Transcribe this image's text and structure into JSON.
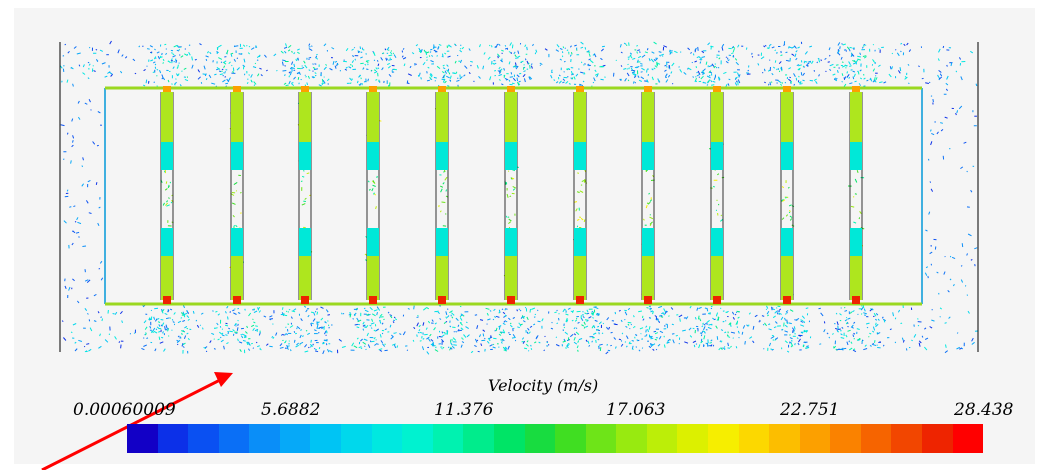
{
  "legend": {
    "title": "Velocity (m/s)",
    "ticks": [
      "0.00060009",
      "5.6882",
      "11.376",
      "17.063",
      "22.751",
      "28.438"
    ],
    "range": [
      0.00060009,
      28.438
    ],
    "colormap": [
      "#1200c6",
      "#0c30e8",
      "#0a50f2",
      "#0a6ff6",
      "#0a8ef8",
      "#06a9f8",
      "#00c4f4",
      "#00d8ec",
      "#00e8e0",
      "#00f2d0",
      "#00f2b0",
      "#00ec8c",
      "#00e466",
      "#18dc40",
      "#40de22",
      "#6ee418",
      "#98ea10",
      "#bcee08",
      "#dcf000",
      "#f6ee00",
      "#fcd800",
      "#fcbe00",
      "#fca000",
      "#fa8200",
      "#f66400",
      "#f24600",
      "#ee2400",
      "#ff0000"
    ]
  },
  "annotation": {
    "color": "#ff0000"
  },
  "geometry_colors": {
    "outline": "#000000",
    "blade_root": "#00e8d8",
    "blade_mid": "#aee61e",
    "blade_edge": "#6ad63c"
  }
}
